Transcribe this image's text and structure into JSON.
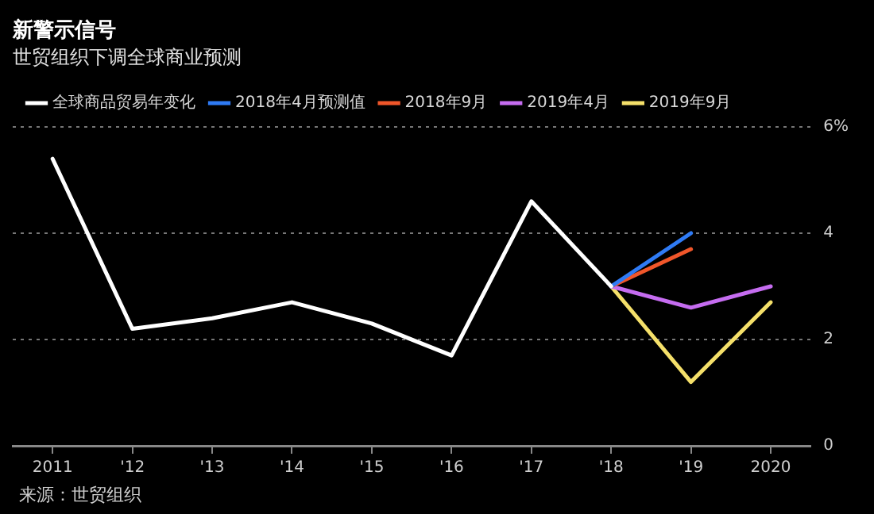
{
  "chart_data": {
    "type": "line",
    "title": "新警示信号",
    "subtitle": "世贸组织下调全球商业预测",
    "categories": [
      "2011",
      "'12",
      "'13",
      "'14",
      "'15",
      "'16",
      "'17",
      "'18",
      "'19",
      "2020"
    ],
    "series": [
      {
        "name": "全球商品贸易年变化",
        "color": "#ffffff",
        "values": [
          5.4,
          2.2,
          2.4,
          2.7,
          2.3,
          1.7,
          4.6,
          3.0,
          null,
          null
        ]
      },
      {
        "name": "2018年4月预测值",
        "color": "#2f7bf5",
        "values": [
          null,
          null,
          null,
          null,
          null,
          null,
          null,
          3.0,
          4.0,
          null
        ]
      },
      {
        "name": "2018年9月",
        "color": "#f0562a",
        "values": [
          null,
          null,
          null,
          null,
          null,
          null,
          null,
          3.0,
          3.7,
          null
        ]
      },
      {
        "name": "2019年4月",
        "color": "#c56cf0",
        "values": [
          null,
          null,
          null,
          null,
          null,
          null,
          null,
          3.0,
          2.6,
          3.0
        ]
      },
      {
        "name": "2019年9月",
        "color": "#f5e06a",
        "values": [
          null,
          null,
          null,
          null,
          null,
          null,
          null,
          3.0,
          1.2,
          2.7
        ]
      }
    ],
    "ylim": [
      0,
      6
    ],
    "yticks": [
      0,
      2,
      4,
      {
        "value": 6,
        "label": "6%"
      }
    ],
    "grid": "y",
    "legend": "top left",
    "marker": "none",
    "line_style": "solid",
    "annotations": [
      "来源：世贸组织"
    ]
  }
}
